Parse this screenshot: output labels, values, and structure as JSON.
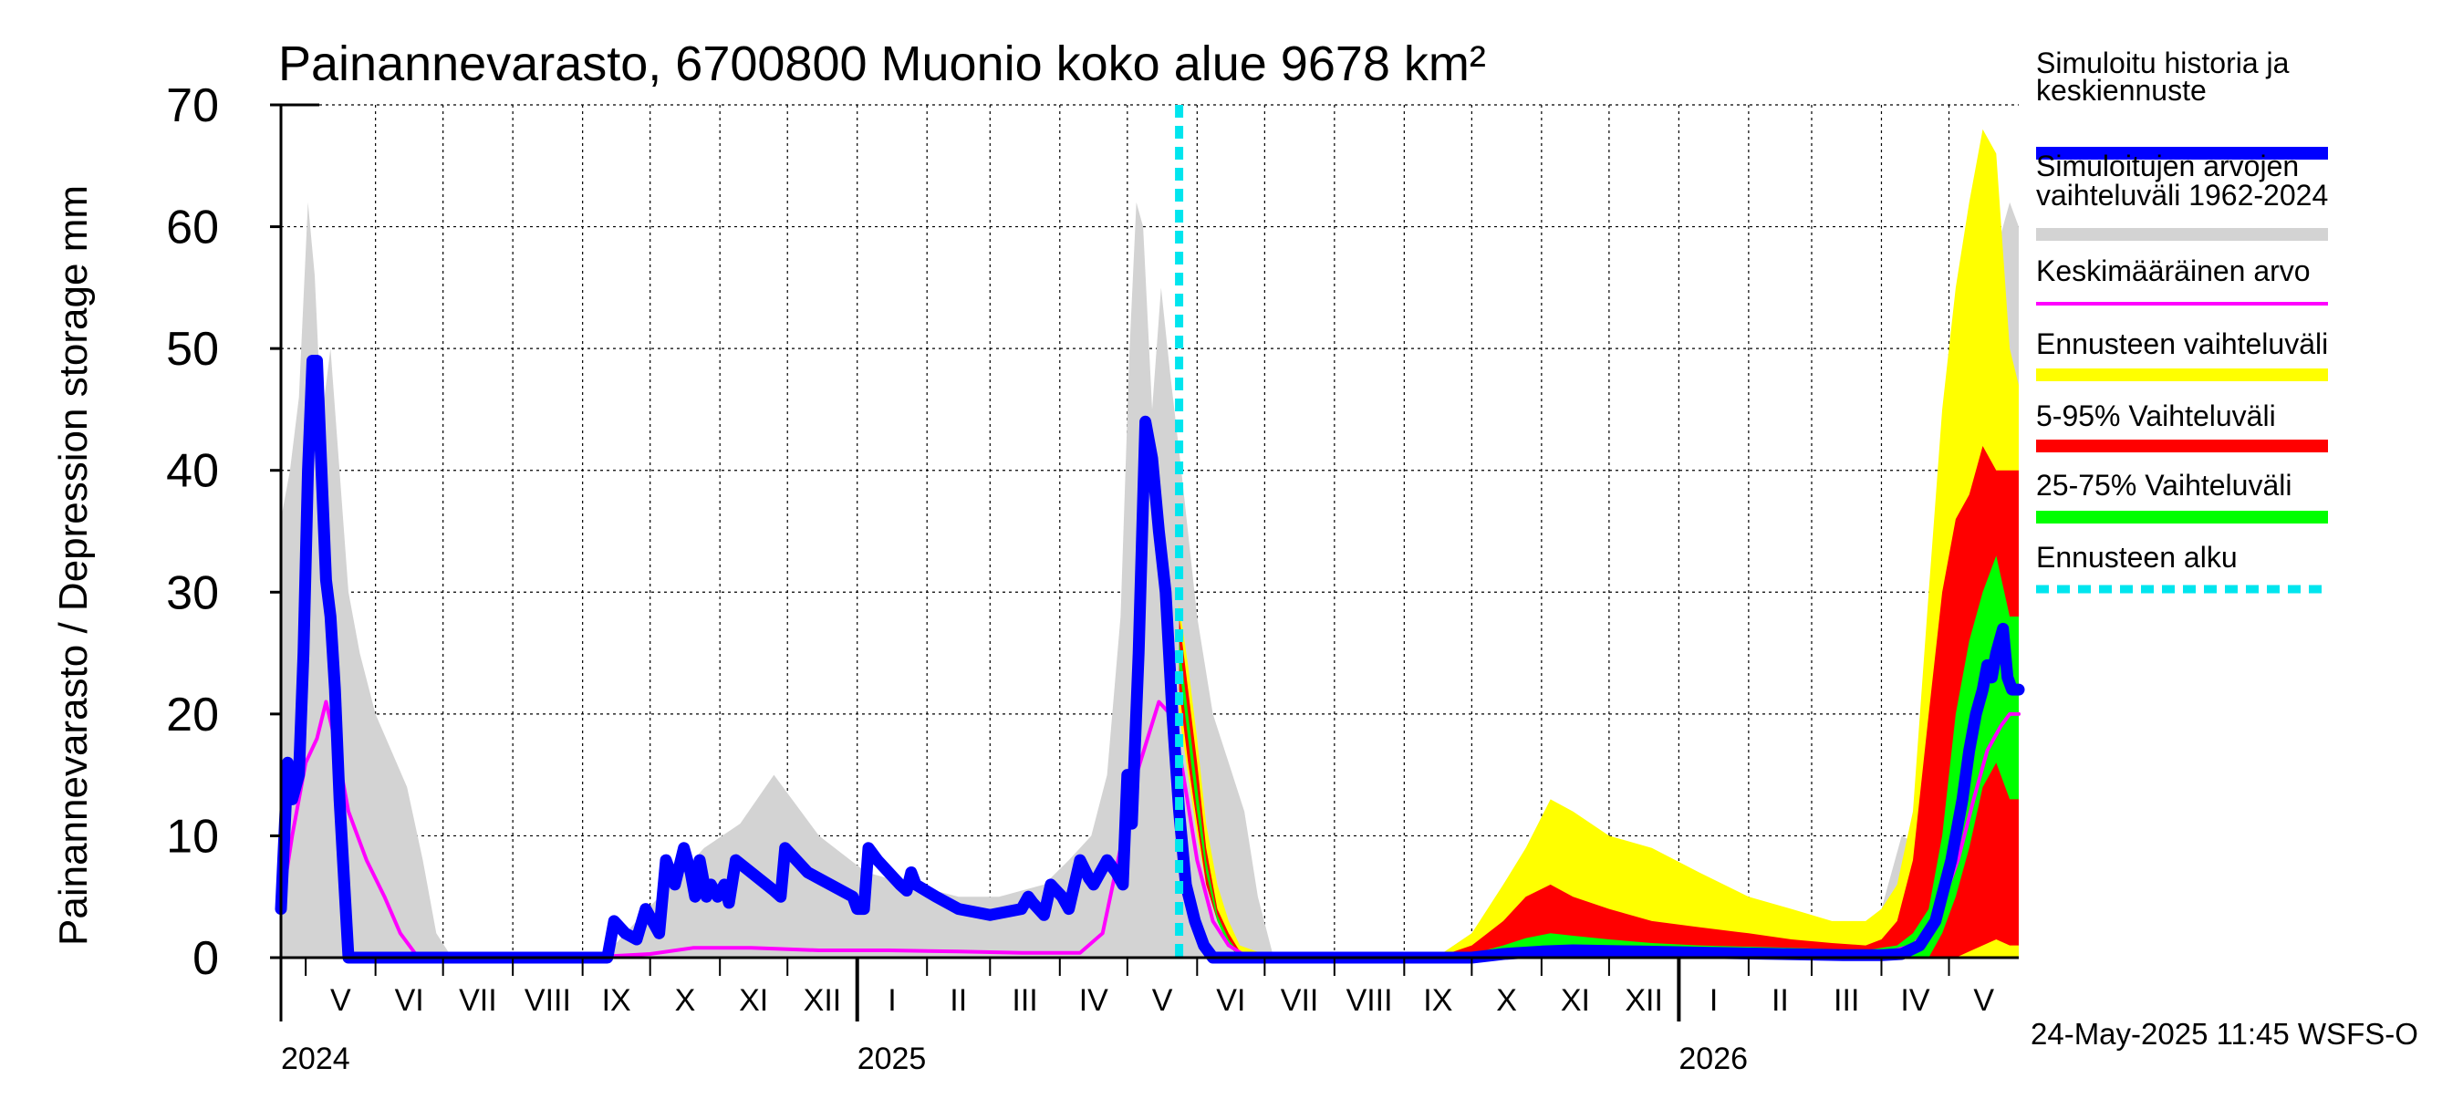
{
  "chart_data": {
    "type": "area",
    "title": "Painannevarasto, 6700800 Muonio koko alue 9678 km²",
    "ylabel": "Painannevarasto / Depression storage    mm",
    "ylim": [
      0,
      70
    ],
    "y_ticks": [
      0,
      10,
      20,
      30,
      40,
      50,
      60,
      70
    ],
    "xlim": [
      "2024-04-20",
      "2026-06-01"
    ],
    "grid": true,
    "legend_position": "right",
    "forecast_start": "2025-05-24",
    "months": [
      {
        "label": "V",
        "start": "2024-05-01"
      },
      {
        "label": "VI",
        "start": "2024-06-01"
      },
      {
        "label": "VII",
        "start": "2024-07-01"
      },
      {
        "label": "VIII",
        "start": "2024-08-01"
      },
      {
        "label": "IX",
        "start": "2024-09-01"
      },
      {
        "label": "X",
        "start": "2024-10-01"
      },
      {
        "label": "XI",
        "start": "2024-11-01"
      },
      {
        "label": "XII",
        "start": "2024-12-01"
      },
      {
        "label": "I",
        "start": "2025-01-01"
      },
      {
        "label": "II",
        "start": "2025-02-01"
      },
      {
        "label": "III",
        "start": "2025-03-01"
      },
      {
        "label": "IV",
        "start": "2025-04-01"
      },
      {
        "label": "V",
        "start": "2025-05-01"
      },
      {
        "label": "VI",
        "start": "2025-06-01"
      },
      {
        "label": "VII",
        "start": "2025-07-01"
      },
      {
        "label": "VIII",
        "start": "2025-08-01"
      },
      {
        "label": "IX",
        "start": "2025-09-01"
      },
      {
        "label": "X",
        "start": "2025-10-01"
      },
      {
        "label": "XI",
        "start": "2025-11-01"
      },
      {
        "label": "XII",
        "start": "2025-12-01"
      },
      {
        "label": "I",
        "start": "2026-01-01"
      },
      {
        "label": "II",
        "start": "2026-02-01"
      },
      {
        "label": "III",
        "start": "2026-03-01"
      },
      {
        "label": "IV",
        "start": "2026-04-01"
      },
      {
        "label": "V",
        "start": "2026-05-01"
      }
    ],
    "years": [
      {
        "label": "2024",
        "start": "2024-04-20"
      },
      {
        "label": "2025",
        "start": "2025-01-01"
      },
      {
        "label": "2026",
        "start": "2026-01-01"
      }
    ],
    "legend": [
      {
        "key": "history",
        "label": [
          "Simuloitu historia ja",
          "keskiennuste"
        ],
        "color": "#0000ff"
      },
      {
        "key": "range",
        "label": [
          "Simuloitujen arvojen",
          "vaihteluväli 1962-2024"
        ],
        "color": "#d3d3d3"
      },
      {
        "key": "mean",
        "label": [
          "Keskimääräinen arvo"
        ],
        "color": "#ff00ff"
      },
      {
        "key": "fc_range",
        "label": [
          "Ennusteen vaihteluväli"
        ],
        "color": "#ffff00"
      },
      {
        "key": "p5_95",
        "label": [
          "5-95% Vaihteluväli"
        ],
        "color": "#ff0000"
      },
      {
        "key": "p25_75",
        "label": [
          "25-75% Vaihteluväli"
        ],
        "color": "#00ff00"
      },
      {
        "key": "fc_start",
        "label": [
          "Ennusteen alku"
        ],
        "color": "#00e5ee"
      }
    ],
    "series": [
      {
        "key": "range",
        "x": [
          "2024-04-20",
          "2024-04-24",
          "2024-04-28",
          "2024-05-02",
          "2024-05-05",
          "2024-05-08",
          "2024-05-12",
          "2024-05-16",
          "2024-05-20",
          "2024-05-25",
          "2024-06-01",
          "2024-06-08",
          "2024-06-15",
          "2024-06-22",
          "2024-06-28",
          "2024-07-05",
          "2024-09-10",
          "2024-09-25",
          "2024-10-10",
          "2024-10-25",
          "2024-11-10",
          "2024-11-25",
          "2024-12-15",
          "2025-01-05",
          "2025-01-25",
          "2025-02-15",
          "2025-03-05",
          "2025-03-25",
          "2025-04-05",
          "2025-04-15",
          "2025-04-22",
          "2025-04-28",
          "2025-05-02",
          "2025-05-05",
          "2025-05-08",
          "2025-05-12",
          "2025-05-16",
          "2025-05-20",
          "2025-05-25",
          "2025-06-01",
          "2025-06-08",
          "2025-06-15",
          "2025-06-22",
          "2025-06-28",
          "2025-07-05",
          "2025-09-15",
          "2025-10-01",
          "2025-10-15",
          "2025-10-25",
          "2025-11-05",
          "2025-11-15",
          "2025-12-01",
          "2025-12-20",
          "2026-01-10",
          "2026-02-01",
          "2026-02-20",
          "2026-03-10",
          "2026-03-22",
          "2026-04-01",
          "2026-04-10",
          "2026-04-20",
          "2026-04-28",
          "2026-05-04",
          "2026-05-10",
          "2026-05-16",
          "2026-05-22",
          "2026-05-28",
          "2026-06-01"
        ],
        "upper": [
          36,
          40,
          46,
          62,
          56,
          44,
          50,
          40,
          30,
          25,
          20,
          17,
          14,
          8,
          2,
          0,
          0,
          3,
          6,
          9,
          11,
          15,
          10,
          7,
          6,
          5,
          5,
          6,
          8,
          10,
          15,
          28,
          50,
          62,
          60,
          45,
          55,
          48,
          40,
          28,
          20,
          16,
          12,
          5,
          0,
          0,
          2,
          5,
          9,
          11,
          10,
          8,
          6,
          4,
          3,
          2,
          2,
          1,
          4,
          10,
          9,
          10,
          22,
          35,
          45,
          58,
          62,
          60
        ],
        "lower": [
          0,
          0,
          0,
          0,
          0,
          0,
          0,
          0,
          0,
          0,
          0,
          0,
          0,
          0,
          0,
          0,
          0,
          0,
          0,
          0,
          0,
          0,
          0,
          0,
          0,
          0,
          0,
          0,
          0,
          0,
          0,
          0,
          0,
          0,
          0,
          0,
          0,
          0,
          0,
          0,
          0,
          0,
          0,
          0,
          0,
          0,
          0,
          0,
          0,
          0,
          0,
          0,
          0,
          0,
          0,
          0,
          0,
          0,
          0,
          0,
          0,
          0,
          0,
          0,
          0,
          0,
          0,
          0
        ]
      },
      {
        "key": "fc_range",
        "x": [
          "2025-05-24",
          "2025-05-28",
          "2025-06-01",
          "2025-06-05",
          "2025-06-10",
          "2025-06-15",
          "2025-06-20",
          "2025-07-05",
          "2025-09-15",
          "2025-10-01",
          "2025-10-15",
          "2025-10-25",
          "2025-11-05",
          "2025-11-15",
          "2025-12-01",
          "2025-12-20",
          "2026-01-10",
          "2026-02-01",
          "2026-02-20",
          "2026-03-10",
          "2026-03-25",
          "2026-04-01",
          "2026-04-08",
          "2026-04-15",
          "2026-04-22",
          "2026-04-28",
          "2026-05-04",
          "2026-05-10",
          "2026-05-16",
          "2026-05-22",
          "2026-05-28",
          "2026-06-01"
        ],
        "upper": [
          29,
          24,
          18,
          11,
          6,
          3,
          1,
          0,
          0,
          2,
          6,
          9,
          13,
          12,
          10,
          9,
          7,
          5,
          4,
          3,
          3,
          4,
          6,
          12,
          30,
          45,
          55,
          62,
          68,
          66,
          50,
          47
        ],
        "lower": [
          20,
          15,
          10,
          6,
          3,
          1,
          0,
          0,
          0,
          0,
          0,
          0,
          0,
          0,
          0,
          0,
          0,
          0,
          0,
          0,
          0,
          0,
          0,
          0,
          0,
          0,
          0,
          0,
          0,
          0,
          0,
          0
        ]
      },
      {
        "key": "p5_95",
        "x": [
          "2025-05-24",
          "2025-05-28",
          "2025-06-01",
          "2025-06-05",
          "2025-06-10",
          "2025-06-15",
          "2025-06-20",
          "2025-07-05",
          "2025-09-15",
          "2025-10-01",
          "2025-10-15",
          "2025-10-25",
          "2025-11-05",
          "2025-11-15",
          "2025-12-01",
          "2025-12-20",
          "2026-01-10",
          "2026-02-01",
          "2026-02-20",
          "2026-03-10",
          "2026-03-25",
          "2026-04-01",
          "2026-04-08",
          "2026-04-15",
          "2026-04-22",
          "2026-04-28",
          "2026-05-04",
          "2026-05-10",
          "2026-05-16",
          "2026-05-22",
          "2026-05-28",
          "2026-06-01"
        ],
        "upper": [
          28,
          22,
          16,
          9,
          4,
          2,
          0.5,
          0,
          0,
          1,
          3,
          5,
          6,
          5,
          4,
          3,
          2.5,
          2,
          1.5,
          1.2,
          1,
          1.5,
          3,
          8,
          20,
          30,
          36,
          38,
          42,
          40,
          40,
          40
        ],
        "lower": [
          22,
          16,
          11,
          6,
          3,
          1,
          0,
          0,
          0,
          0,
          0,
          0,
          0,
          0,
          0,
          0,
          0,
          0,
          0,
          0,
          0,
          0,
          0,
          0,
          0,
          0,
          0,
          0.5,
          1,
          1.5,
          1,
          1
        ]
      },
      {
        "key": "p25_75",
        "x": [
          "2025-05-24",
          "2025-05-28",
          "2025-06-01",
          "2025-06-05",
          "2025-06-10",
          "2025-06-15",
          "2025-06-20",
          "2025-07-05",
          "2025-09-15",
          "2025-10-01",
          "2025-10-15",
          "2025-10-25",
          "2025-11-05",
          "2025-11-15",
          "2025-12-01",
          "2025-12-20",
          "2026-01-10",
          "2026-02-01",
          "2026-02-20",
          "2026-03-10",
          "2026-03-25",
          "2026-04-01",
          "2026-04-08",
          "2026-04-15",
          "2026-04-22",
          "2026-04-28",
          "2026-05-04",
          "2026-05-10",
          "2026-05-16",
          "2026-05-22",
          "2026-05-28",
          "2026-06-01"
        ],
        "upper": [
          26,
          20,
          14,
          8,
          3.5,
          1.5,
          0.3,
          0,
          0,
          0.3,
          1,
          1.6,
          2,
          1.8,
          1.5,
          1.2,
          1,
          0.9,
          0.8,
          0.7,
          0.6,
          0.8,
          1,
          2,
          4,
          10,
          20,
          26,
          30,
          33,
          28,
          28
        ],
        "lower": [
          24,
          18,
          12,
          7,
          3,
          1,
          0,
          0,
          0,
          0,
          0,
          0,
          0,
          0,
          0,
          0,
          0,
          0,
          0,
          0,
          0,
          0,
          0,
          0,
          0,
          2,
          5,
          9,
          14,
          16,
          13,
          13
        ]
      },
      {
        "key": "mean",
        "x": [
          "2024-04-20",
          "2024-04-25",
          "2024-05-01",
          "2024-05-06",
          "2024-05-10",
          "2024-05-15",
          "2024-05-20",
          "2024-05-28",
          "2024-06-05",
          "2024-06-12",
          "2024-06-20",
          "2024-09-01",
          "2024-10-01",
          "2024-10-20",
          "2024-11-15",
          "2024-12-15",
          "2025-01-15",
          "2025-02-15",
          "2025-03-15",
          "2025-04-10",
          "2025-04-20",
          "2025-04-28",
          "2025-05-05",
          "2025-05-10",
          "2025-05-15",
          "2025-05-20",
          "2025-05-25",
          "2025-06-01",
          "2025-06-08",
          "2025-06-15",
          "2025-06-22",
          "2025-07-01",
          "2025-09-15",
          "2025-10-15",
          "2025-11-10",
          "2025-12-01",
          "2026-01-01",
          "2026-02-01",
          "2026-03-01",
          "2026-04-01",
          "2026-04-15",
          "2026-04-25",
          "2026-05-05",
          "2026-05-12",
          "2026-05-18",
          "2026-05-24",
          "2026-05-28",
          "2026-06-01"
        ],
        "y": [
          4,
          10,
          16,
          18,
          21,
          17,
          12,
          8,
          5,
          2,
          0,
          0,
          0.3,
          0.8,
          0.8,
          0.6,
          0.6,
          0.5,
          0.4,
          0.4,
          2,
          9,
          15,
          18,
          21,
          20,
          16,
          8,
          3,
          1,
          0.2,
          0,
          0,
          0.3,
          0.6,
          0.5,
          0.4,
          0.3,
          0.3,
          0.3,
          1,
          3,
          8,
          13,
          17,
          19,
          20,
          20
        ]
      },
      {
        "key": "history",
        "x": [
          "2024-04-20",
          "2024-04-23",
          "2024-04-25",
          "2024-04-28",
          "2024-04-30",
          "2024-05-02",
          "2024-05-04",
          "2024-05-06",
          "2024-05-08",
          "2024-05-10",
          "2024-05-12",
          "2024-05-14",
          "2024-05-16",
          "2024-05-20",
          "2024-05-24",
          "2024-05-27",
          "2024-05-30",
          "2024-06-05",
          "2024-06-15",
          "2024-09-12",
          "2024-09-15",
          "2024-09-20",
          "2024-09-25",
          "2024-09-29",
          "2024-10-02",
          "2024-10-05",
          "2024-10-08",
          "2024-10-12",
          "2024-10-16",
          "2024-10-19",
          "2024-10-21",
          "2024-10-23",
          "2024-10-26",
          "2024-10-28",
          "2024-10-31",
          "2024-11-03",
          "2024-11-05",
          "2024-11-08",
          "2024-11-25",
          "2024-11-28",
          "2024-11-30",
          "2024-12-10",
          "2024-12-30",
          "2025-01-01",
          "2025-01-04",
          "2025-01-06",
          "2025-01-10",
          "2025-01-20",
          "2025-01-23",
          "2025-01-25",
          "2025-01-27",
          "2025-02-05",
          "2025-02-15",
          "2025-03-01",
          "2025-03-15",
          "2025-03-18",
          "2025-03-20",
          "2025-03-25",
          "2025-03-28",
          "2025-04-02",
          "2025-04-05",
          "2025-04-10",
          "2025-04-14",
          "2025-04-16",
          "2025-04-22",
          "2025-04-26",
          "2025-04-29",
          "2025-05-01",
          "2025-05-03",
          "2025-05-06",
          "2025-05-09",
          "2025-05-12",
          "2025-05-15",
          "2025-05-18",
          "2025-05-21",
          "2025-05-24",
          "2025-05-27",
          "2025-05-31",
          "2025-06-04",
          "2025-06-08",
          "2025-06-12",
          "2025-06-16",
          "2025-06-20",
          "2025-06-25",
          "2025-07-01",
          "2025-09-15",
          "2025-10-01",
          "2025-10-15",
          "2025-11-01",
          "2025-11-15",
          "2025-12-15",
          "2026-01-15",
          "2026-02-15",
          "2026-03-15",
          "2026-04-01",
          "2026-04-10",
          "2026-04-18",
          "2026-04-25",
          "2026-05-02",
          "2026-05-07",
          "2026-05-10",
          "2026-05-13",
          "2026-05-16",
          "2026-05-18",
          "2026-05-20",
          "2026-05-22",
          "2026-05-25",
          "2026-05-27",
          "2026-05-29",
          "2026-06-01"
        ],
        "y": [
          4,
          16,
          13,
          15,
          25,
          40,
          49,
          49,
          40,
          31,
          28,
          22,
          13,
          0,
          0,
          0,
          0,
          0,
          0,
          0,
          3,
          2,
          1.5,
          4,
          3,
          2,
          8,
          6,
          9,
          7,
          5,
          8,
          5,
          6,
          5,
          6,
          4.5,
          8,
          5.5,
          5,
          9,
          7,
          5,
          4,
          4,
          9,
          8,
          6,
          5.5,
          7,
          6,
          5,
          4,
          3.5,
          4,
          5,
          4.5,
          3.5,
          6,
          5,
          4,
          8,
          6.5,
          6,
          8,
          7,
          6,
          15,
          11,
          25,
          44,
          41,
          35,
          30,
          20,
          12,
          6,
          3,
          1,
          0,
          0,
          0,
          0,
          0,
          0,
          0,
          0,
          0.3,
          0.5,
          0.6,
          0.5,
          0.4,
          0.3,
          0.2,
          0.2,
          0.3,
          1,
          3,
          8,
          13,
          17,
          20,
          22,
          24,
          23,
          25,
          27,
          23,
          22,
          22
        ]
      }
    ]
  },
  "footer": "24-May-2025 11:45 WSFS-O"
}
